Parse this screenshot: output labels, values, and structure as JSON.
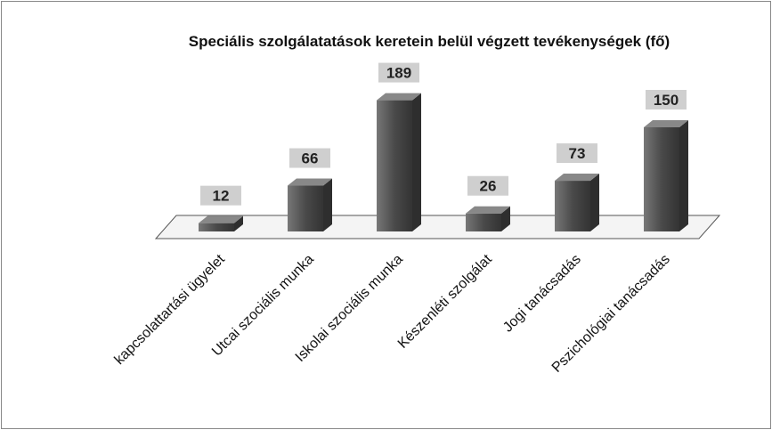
{
  "chart_data": {
    "type": "bar3d",
    "title": "Speciális szolgálatatások  keretein belül végzett tevékenységek (fő)",
    "categories": [
      "kapcsolattartási ügyelet",
      "Utcai szociális munka",
      "Iskolai szociális munka",
      "Készenléti szolgálat",
      "Jogi tanácsadás",
      "Pszichológiai tanácsadás"
    ],
    "values": [
      12,
      66,
      189,
      26,
      73,
      150
    ],
    "color": "#5a5a5a"
  }
}
